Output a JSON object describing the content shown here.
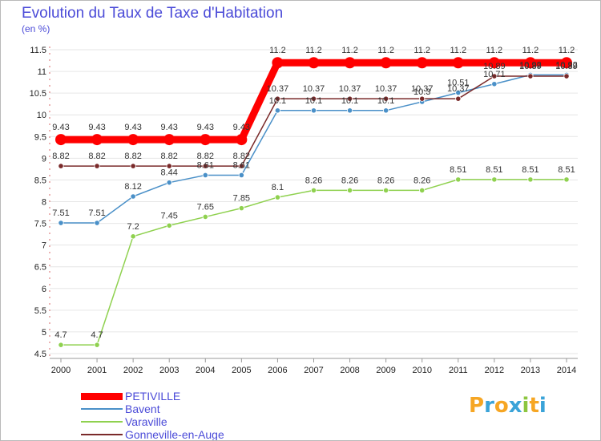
{
  "header": {
    "title": "Evolution du Taux de Taxe d'Habitation",
    "subtitle": "(en %)"
  },
  "logo": {
    "letters": [
      "P",
      "r",
      "o",
      "x",
      "i",
      "t",
      "i"
    ],
    "colors": [
      "#f6a623",
      "#3aa3d8",
      "#f6a623",
      "#3aa3d8",
      "#8cc63f",
      "#f6a623",
      "#3aa3d8"
    ]
  },
  "chart_data": {
    "type": "line",
    "title": "Evolution du Taux de Taxe d'Habitation",
    "ylabel": "(en %)",
    "xlabel": "",
    "x": [
      "2000",
      "2001",
      "2002",
      "2003",
      "2004",
      "2005",
      "2006",
      "2007",
      "2008",
      "2009",
      "2010",
      "2011",
      "2012",
      "2013",
      "2014"
    ],
    "ylim": [
      4.5,
      11.5
    ],
    "yticks": [
      "4.5",
      "5",
      "5.5",
      "6",
      "6.5",
      "7",
      "7.5",
      "8",
      "8.5",
      "9",
      "9.5",
      "10",
      "10.5",
      "11",
      "11.5"
    ],
    "grid": "horizontal",
    "legend": "bottom-left",
    "series": [
      {
        "name": "PETIVILLE",
        "color": "#ff0000",
        "values": [
          9.43,
          9.43,
          9.43,
          9.43,
          9.43,
          9.43,
          11.2,
          11.2,
          11.2,
          11.2,
          11.2,
          11.2,
          11.2,
          11.2,
          11.2
        ],
        "labels": [
          "9.43",
          "9.43",
          "9.43",
          "9.43",
          "9.43",
          "9.43",
          "11.2",
          "11.2",
          "11.2",
          "11.2",
          "11.2",
          "11.2",
          "11.2",
          "11.2",
          "11.2"
        ]
      },
      {
        "name": "Bavent",
        "color": "#4a90c8",
        "values": [
          7.51,
          7.51,
          8.12,
          8.44,
          8.61,
          8.61,
          10.1,
          10.1,
          10.1,
          10.1,
          10.3,
          10.51,
          10.71,
          10.92,
          10.92
        ],
        "labels": [
          "7.51",
          "7.51",
          "8.12",
          "8.44",
          "8.61",
          "8.61",
          "10.1",
          "10.1",
          "10.1",
          "10.1",
          "10.3",
          "10.51",
          "10.71",
          "10.92",
          "10.92"
        ]
      },
      {
        "name": "Varaville",
        "color": "#8fd14f",
        "values": [
          4.7,
          4.7,
          7.2,
          7.45,
          7.65,
          7.85,
          8.1,
          8.26,
          8.26,
          8.26,
          8.26,
          8.51,
          8.51,
          8.51,
          8.51
        ],
        "labels": [
          "4.7",
          "4.7",
          "7.2",
          "7.45",
          "7.65",
          "7.85",
          "8.1",
          "8.26",
          "8.26",
          "8.26",
          "8.26",
          "8.51",
          "8.51",
          "8.51",
          "8.51"
        ]
      },
      {
        "name": "Gonneville-en-Auge",
        "color": "#7a2a2a",
        "values": [
          8.82,
          8.82,
          8.82,
          8.82,
          8.82,
          8.82,
          10.37,
          10.37,
          10.37,
          10.37,
          10.37,
          10.37,
          10.89,
          10.89,
          10.89
        ],
        "labels": [
          "8.82",
          "8.82",
          "8.82",
          "8.82",
          "8.82",
          "8.82",
          "10.37",
          "10.37",
          "10.37",
          "10.37",
          "10.37",
          "10.37",
          "10.89",
          "10.89",
          "10.89"
        ]
      }
    ]
  }
}
